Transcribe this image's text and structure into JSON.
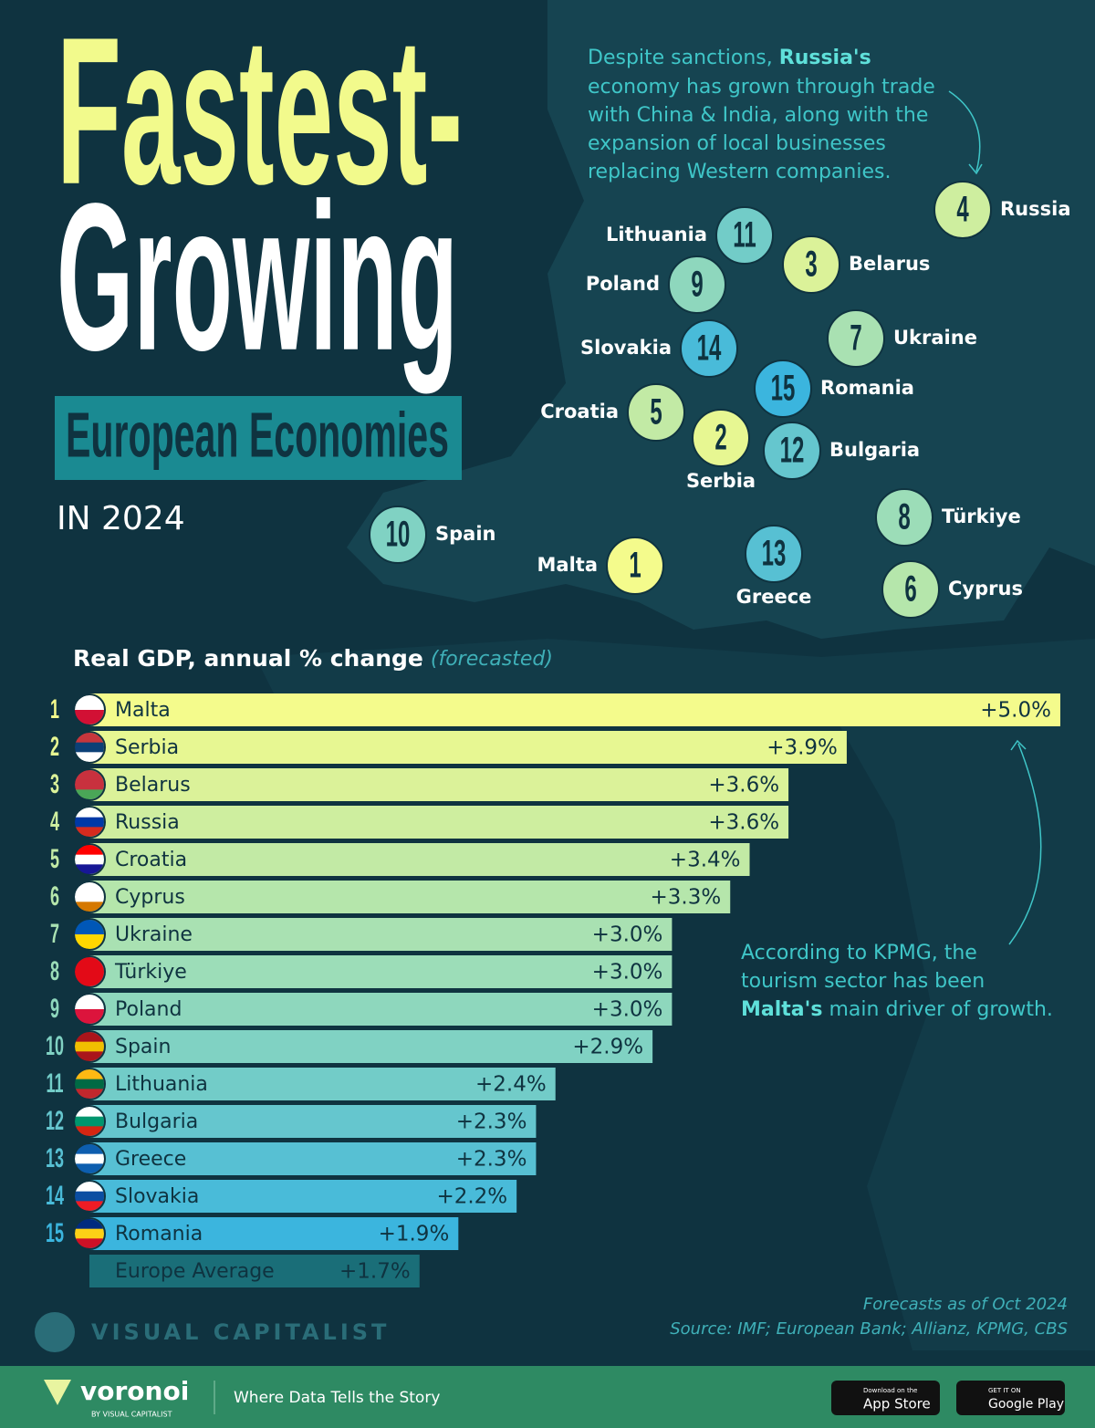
{
  "header": {
    "title_line1": "Fastest-",
    "title_line2": "Growing",
    "title_line3": "European Economies",
    "subtitle": "IN 2024"
  },
  "annotations": {
    "russia": {
      "line1_a": "Despite sanctions, ",
      "line1_b": "Russia's",
      "line2": "economy has grown through trade",
      "line3": "with China & India, along with the",
      "line4": "expansion of local businesses",
      "line5": "replacing Western companies."
    },
    "malta": {
      "line1": "According to KPMG, the",
      "line2": "tourism sector has been",
      "line3_a": "Malta's",
      "line3_b": " main driver of growth."
    }
  },
  "map": {
    "markers": [
      {
        "rank": "1",
        "name": "Malta"
      },
      {
        "rank": "2",
        "name": "Serbia"
      },
      {
        "rank": "3",
        "name": "Belarus"
      },
      {
        "rank": "4",
        "name": "Russia"
      },
      {
        "rank": "5",
        "name": "Croatia"
      },
      {
        "rank": "6",
        "name": "Cyprus"
      },
      {
        "rank": "7",
        "name": "Ukraine"
      },
      {
        "rank": "8",
        "name": "Türkiye"
      },
      {
        "rank": "9",
        "name": "Poland"
      },
      {
        "rank": "10",
        "name": "Spain"
      },
      {
        "rank": "11",
        "name": "Lithuania"
      },
      {
        "rank": "12",
        "name": "Bulgaria"
      },
      {
        "rank": "13",
        "name": "Greece"
      },
      {
        "rank": "14",
        "name": "Slovakia"
      },
      {
        "rank": "15",
        "name": "Romania"
      }
    ]
  },
  "chart_data": {
    "type": "hbar",
    "title": "Real GDP, annual % change",
    "title_note": "(forecasted)",
    "categories": [
      "Malta",
      "Serbia",
      "Belarus",
      "Russia",
      "Croatia",
      "Cyprus",
      "Ukraine",
      "Türkiye",
      "Poland",
      "Spain",
      "Lithuania",
      "Bulgaria",
      "Greece",
      "Slovakia",
      "Romania"
    ],
    "ranks": [
      1,
      2,
      3,
      4,
      5,
      6,
      7,
      8,
      9,
      10,
      11,
      12,
      13,
      14,
      15
    ],
    "values": [
      5.0,
      3.9,
      3.6,
      3.6,
      3.4,
      3.3,
      3.0,
      3.0,
      3.0,
      2.9,
      2.4,
      2.3,
      2.3,
      2.2,
      1.9
    ],
    "value_labels": [
      "+5.0%",
      "+3.9%",
      "+3.6%",
      "+3.6%",
      "+3.4%",
      "+3.3%",
      "+3.0%",
      "+3.0%",
      "+3.0%",
      "+2.9%",
      "+2.4%",
      "+2.3%",
      "+2.3%",
      "+2.2%",
      "+1.9%"
    ],
    "xlim": [
      0,
      5
    ],
    "average": {
      "label": "Europe Average",
      "value": 1.7,
      "value_label": "+1.7%"
    }
  },
  "footer": {
    "note": "Forecasts as of Oct 2024",
    "source": "Source: IMF; European Bank; Allianz, KPMG, CBS",
    "brand": "VISUAL CAPITALIST",
    "voronoi": "voronoi",
    "voronoi_by": "BY VISUAL CAPITALIST",
    "tagline": "Where Data Tells the Story",
    "appstore_small": "Download on the",
    "appstore": "App Store",
    "googleplay_small": "GET IT ON",
    "googleplay": "Google Play"
  }
}
